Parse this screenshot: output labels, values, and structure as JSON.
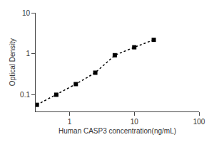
{
  "chart_data": {
    "type": "line",
    "x_label": "Human CASP3 concentration(ng/mL)",
    "y_label": "Optical Density",
    "x": [
      0.313,
      0.625,
      1.25,
      2.5,
      5,
      10,
      20
    ],
    "values": [
      0.058,
      0.102,
      0.185,
      0.35,
      0.93,
      1.45,
      2.2
    ],
    "xlim": [
      0.3,
      100
    ],
    "ylim": [
      0.04,
      10
    ],
    "xticks": [
      1,
      10,
      100
    ],
    "yticks": [
      0.1,
      1,
      10
    ],
    "log": true,
    "grid": false,
    "color": "#000000",
    "marker": "square",
    "line_style": "dotted"
  }
}
